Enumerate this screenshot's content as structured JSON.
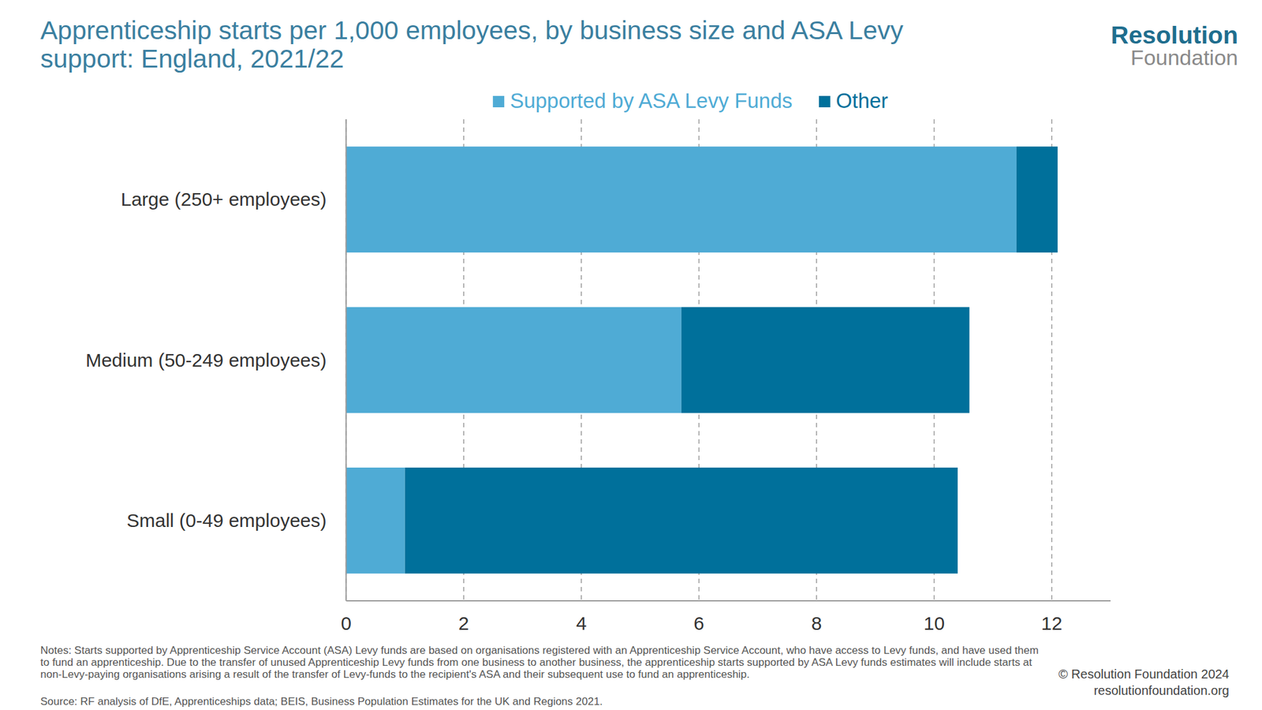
{
  "chart_data": {
    "type": "bar",
    "orientation": "horizontal",
    "stacked": true,
    "title": "Apprenticeship starts per 1,000 employees, by business size and ASA Levy support: England, 2021/22",
    "categories": [
      "Large (250+ employees)",
      "Medium (50-249 employees)",
      "Small (0-49 employees)"
    ],
    "series": [
      {
        "name": "Supported by ASA Levy Funds",
        "color": "#4fabd5",
        "values": [
          11.4,
          5.7,
          1.0
        ]
      },
      {
        "name": "Other",
        "color": "#00709b",
        "values": [
          0.7,
          4.9,
          9.4
        ]
      }
    ],
    "xlim": [
      0,
      13
    ],
    "xticks": [
      0,
      2,
      4,
      6,
      8,
      10,
      12
    ],
    "grid": true,
    "legend": "top",
    "notes": "Notes: Starts supported by Apprenticeship Service Account (ASA) Levy funds are based on organisations registered with an Apprenticeship Service Account, who have access to Levy funds, and have used them to fund an apprenticeship. Due to the transfer of unused Apprenticeship Levy funds from one business to another business, the apprenticeship starts supported by ASA Levy funds estimates will include starts at non-Levy-paying organisations arising a result of the transfer of Levy-funds to the recipient's ASA and their subsequent use to fund an apprenticeship.",
    "source": "Source: RF analysis of DfE, Apprenticeships data; BEIS, Business Population Estimates for the UK and Regions 2021.",
    "copyright": "© Resolution Foundation 2024",
    "url": "resolutionfoundation.org",
    "brand": [
      "Resolution",
      "Foundation"
    ]
  }
}
